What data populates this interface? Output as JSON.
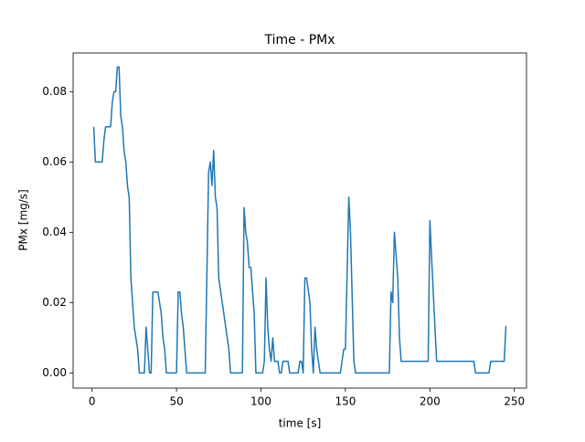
{
  "chart_data": {
    "type": "line",
    "title": "Time - PMx",
    "xlabel": "time [s]",
    "ylabel": "PMx [mg/s]",
    "color": "#1f77b4",
    "x": [
      1,
      2,
      6,
      7,
      8,
      11,
      12,
      13,
      14,
      15,
      16,
      17,
      18,
      19,
      20,
      21,
      22,
      23,
      25,
      27,
      28,
      31,
      32,
      33,
      34,
      35,
      36,
      39,
      41,
      42,
      43,
      44,
      50,
      51,
      52,
      53,
      54,
      56,
      67,
      69,
      70,
      71,
      72,
      73,
      74,
      75,
      81,
      82,
      89,
      90,
      91,
      92,
      93,
      94,
      96,
      97,
      101,
      102,
      103,
      104,
      105,
      106,
      107,
      108,
      110,
      111,
      112,
      113,
      116,
      117,
      122,
      123,
      124,
      125,
      126,
      127,
      129,
      130,
      131,
      132,
      133,
      135,
      147,
      148,
      149,
      150,
      152,
      153,
      155,
      156,
      176,
      177,
      178,
      179,
      181,
      182,
      183,
      199,
      200,
      201,
      203,
      204,
      226,
      227,
      235,
      236,
      244,
      245
    ],
    "values": [
      0.07,
      0.06,
      0.06,
      0.066,
      0.07,
      0.07,
      0.077,
      0.08,
      0.08,
      0.087,
      0.087,
      0.073,
      0.07,
      0.063,
      0.06,
      0.053,
      0.05,
      0.027,
      0.013,
      0.0067,
      0,
      0,
      0.013,
      0.0067,
      0,
      0,
      0.023,
      0.023,
      0.0167,
      0.01,
      0.0067,
      0,
      0,
      0.023,
      0.023,
      0.0167,
      0.013,
      0,
      0,
      0.057,
      0.06,
      0.0533,
      0.0633,
      0.05,
      0.047,
      0.027,
      0.0067,
      0,
      0,
      0.047,
      0.04,
      0.037,
      0.03,
      0.03,
      0.0167,
      0,
      0,
      0.0033,
      0.027,
      0.013,
      0.0067,
      0.0033,
      0.01,
      0.0033,
      0.0033,
      0,
      0,
      0.0033,
      0.0033,
      0,
      0,
      0.0033,
      0.0033,
      0,
      0.027,
      0.027,
      0.02,
      0.0067,
      0,
      0.013,
      0.0067,
      0,
      0,
      0.0033,
      0.0067,
      0.0067,
      0.05,
      0.04,
      0.0033,
      0,
      0,
      0.023,
      0.02,
      0.04,
      0.027,
      0.01,
      0.0033,
      0.0033,
      0.0433,
      0.033,
      0.013,
      0.0033,
      0.0033,
      0,
      0,
      0.0033,
      0.0033,
      0.0133
    ],
    "xlim": [
      -11.2,
      257.2
    ],
    "ylim": [
      -0.00433,
      0.091
    ],
    "xticks": [
      0,
      50,
      100,
      150,
      200,
      250
    ],
    "yticks": [
      {
        "value": 0,
        "label": "0.00"
      },
      {
        "value": 0.02,
        "label": "0.02"
      },
      {
        "value": 0.04,
        "label": "0.04"
      },
      {
        "value": 0.06,
        "label": "0.06"
      },
      {
        "value": 0.08,
        "label": "0.08"
      }
    ]
  }
}
